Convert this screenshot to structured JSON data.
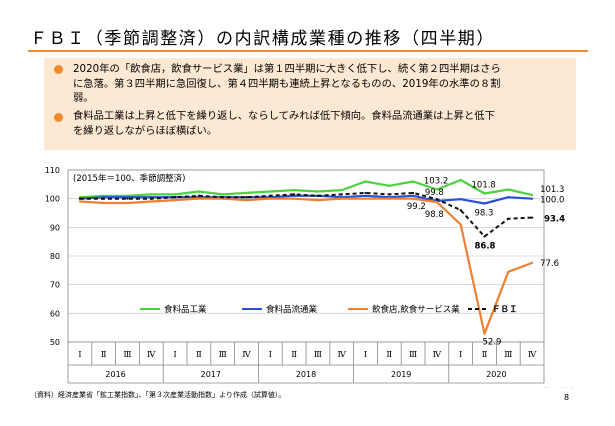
{
  "title": "ＦＢＩ（季節調整済）の内訳構成業種の推移（四半期）",
  "bullets": [
    {
      "line1": "2020年の「飲食店，飲食サービス業」は第１四半期に大きく低下し、続く第２四半期はさら",
      "line2": "に急落。第３四半期に急回復し、第４四半期も連続上昇となるものの、2019年の水準の８割",
      "line3": "弱。"
    },
    {
      "line1": "食料品工業は上昇と低下を繰り返し、ならしてみれば低下傾向。食料品流通業は上昇と低下",
      "line2": "を繰り返しながらほぼ横ばい。"
    }
  ],
  "footnote": "（資料）経済産業省「鉱工業指数」、「第３次産業活動指数」より作成（試算値）。",
  "page_number": "8",
  "chart_data": {
    "type": "line",
    "note": "(2015年＝100、季節調整済)",
    "unit_label": "（期／年）",
    "ylim": [
      50,
      110
    ],
    "yticks": [
      50,
      60,
      70,
      80,
      90,
      100,
      110
    ],
    "x_quarters": [
      "Ⅰ",
      "Ⅱ",
      "Ⅲ",
      "Ⅳ",
      "Ⅰ",
      "Ⅱ",
      "Ⅲ",
      "Ⅳ",
      "Ⅰ",
      "Ⅱ",
      "Ⅲ",
      "Ⅳ",
      "Ⅰ",
      "Ⅱ",
      "Ⅲ",
      "Ⅳ",
      "Ⅰ",
      "Ⅱ",
      "Ⅲ",
      "Ⅳ"
    ],
    "years": [
      "2016",
      "2017",
      "2018",
      "2019",
      "2020"
    ],
    "series": [
      {
        "name": "食料品工業",
        "color": "#4cd23c",
        "dash": false,
        "values": [
          100.5,
          101.0,
          101.0,
          101.5,
          101.5,
          102.5,
          101.5,
          102.0,
          102.5,
          103.0,
          102.5,
          103.0,
          106.0,
          104.5,
          106.0,
          103.2,
          106.5,
          101.8,
          103.2,
          101.3
        ]
      },
      {
        "name": "食料品流通業",
        "color": "#2b4fd8",
        "dash": false,
        "values": [
          100.0,
          100.5,
          100.5,
          100.5,
          100.5,
          100.5,
          100.5,
          100.5,
          100.5,
          101.0,
          101.0,
          100.5,
          101.0,
          100.5,
          101.0,
          99.2,
          99.8,
          98.3,
          100.5,
          100.0
        ]
      },
      {
        "name": "飲食店,飲食サービス業",
        "color": "#f08030",
        "dash": false,
        "values": [
          99.0,
          98.5,
          98.5,
          99.0,
          99.5,
          100.0,
          100.0,
          99.5,
          100.0,
          100.0,
          99.5,
          100.0,
          100.0,
          100.0,
          100.0,
          98.8,
          91.0,
          52.9,
          74.5,
          77.6
        ]
      },
      {
        "name": "ＦＢＩ",
        "color": "#111111",
        "dash": true,
        "values": [
          100.0,
          100.0,
          100.0,
          100.0,
          100.5,
          101.0,
          100.5,
          100.5,
          101.0,
          101.5,
          101.0,
          101.5,
          102.0,
          101.5,
          102.0,
          99.8,
          96.0,
          86.8,
          93.0,
          93.4
        ]
      }
    ],
    "annotations": [
      {
        "text": "103.2",
        "q": 15,
        "v": 103.2,
        "dx": -13,
        "dy": -6
      },
      {
        "text": "99.8",
        "q": 15,
        "v": 99.8,
        "dx": -12,
        "dy": -4
      },
      {
        "text": "99.2",
        "q": 15,
        "v": 99.2,
        "dx": -30,
        "dy": 8
      },
      {
        "text": "98.8",
        "q": 15,
        "v": 98.8,
        "dx": -12,
        "dy": 15
      },
      {
        "text": "101.8",
        "q": 17,
        "v": 101.8,
        "dx": -13,
        "dy": -6
      },
      {
        "text": "98.3",
        "q": 17,
        "v": 98.3,
        "dx": -10,
        "dy": 12
      },
      {
        "text": "86.8",
        "q": 17,
        "v": 86.8,
        "dx": -10,
        "dy": 12,
        "bold": true
      },
      {
        "text": "52.9",
        "q": 17,
        "v": 52.9,
        "dx": -2,
        "dy": 11
      },
      {
        "text": "101.3",
        "q": 19,
        "v": 101.3,
        "dx": 8,
        "dy": -3
      },
      {
        "text": "100.0",
        "q": 19,
        "v": 100.0,
        "dx": 8,
        "dy": 4
      },
      {
        "text": "93.4",
        "q": 19,
        "v": 93.4,
        "dx": 12,
        "dy": 4,
        "bold": true
      },
      {
        "text": "77.6",
        "q": 19,
        "v": 77.6,
        "dx": 8,
        "dy": 3
      }
    ]
  }
}
